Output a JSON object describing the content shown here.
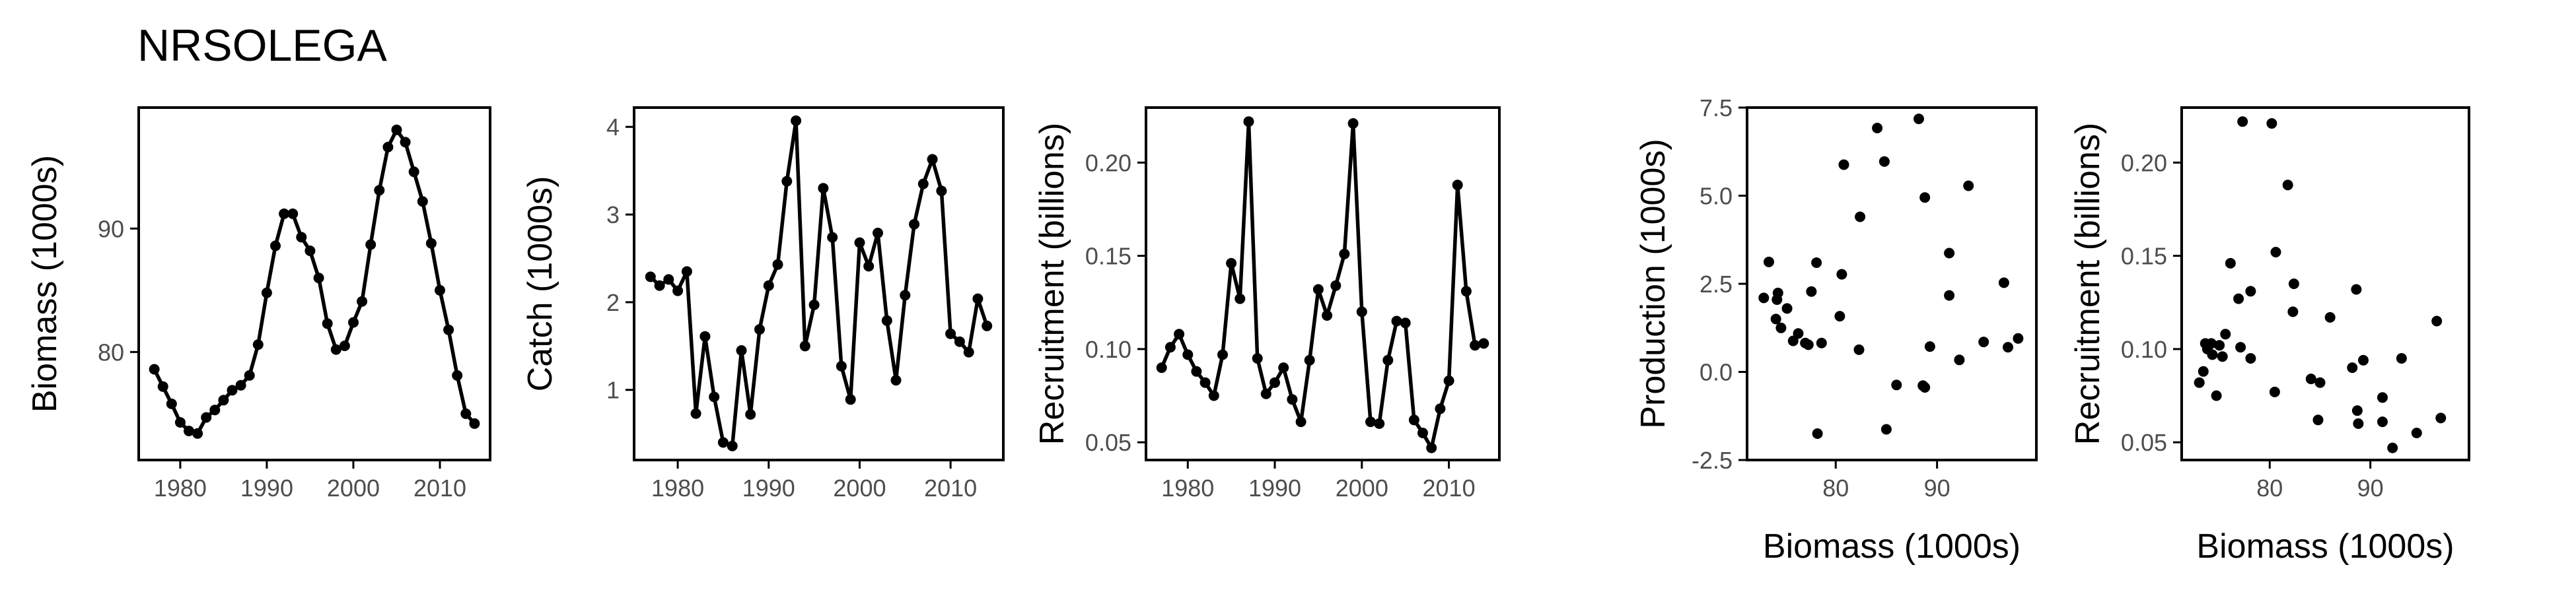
{
  "page": {
    "title": "NRSOLEGA"
  },
  "colors": {
    "ink": "#000000",
    "tick_label": "#4d4d4d",
    "background": "#ffffff"
  },
  "chart_data": [
    {
      "type": "line",
      "title": "",
      "xlabel": "",
      "ylabel": "Biomass (1000s)",
      "xlim": [
        1975.2,
        2015.8
      ],
      "ylim": [
        71.25,
        99.8
      ],
      "xticks": [
        1980,
        1990,
        2000,
        2010
      ],
      "yticks": [
        80,
        90
      ],
      "grid": false,
      "x": [
        1977,
        1978,
        1979,
        1980,
        1981,
        1982,
        1983,
        1984,
        1985,
        1986,
        1987,
        1988,
        1989,
        1990,
        1991,
        1992,
        1993,
        1994,
        1995,
        1996,
        1997,
        1998,
        1999,
        2000,
        2001,
        2002,
        2003,
        2004,
        2005,
        2006,
        2007,
        2008,
        2009,
        2010,
        2011,
        2012,
        2013,
        2014
      ],
      "values": [
        78.6,
        77.2,
        75.8,
        74.3,
        73.6,
        73.4,
        74.7,
        75.3,
        76.1,
        76.9,
        77.3,
        78.1,
        80.6,
        84.8,
        88.6,
        91.2,
        91.2,
        89.3,
        88.2,
        86.0,
        82.3,
        80.2,
        80.5,
        82.4,
        84.1,
        88.7,
        93.1,
        96.6,
        98.0,
        97.0,
        94.6,
        92.2,
        88.8,
        85.0,
        81.8,
        78.1,
        75.0,
        74.2
      ]
    },
    {
      "type": "line",
      "title": "",
      "xlabel": "",
      "ylabel": "Catch (1000s)",
      "xlim": [
        1975.2,
        2015.8
      ],
      "ylim": [
        0.2,
        4.22
      ],
      "xticks": [
        1980,
        1990,
        2000,
        2010
      ],
      "yticks": [
        1,
        2,
        3,
        4
      ],
      "grid": false,
      "x": [
        1977,
        1978,
        1979,
        1980,
        1981,
        1982,
        1983,
        1984,
        1985,
        1986,
        1987,
        1988,
        1989,
        1990,
        1991,
        1992,
        1993,
        1994,
        1995,
        1996,
        1997,
        1998,
        1999,
        2000,
        2001,
        2002,
        2003,
        2004,
        2005,
        2006,
        2007,
        2008,
        2009,
        2010,
        2011,
        2012,
        2013,
        2014
      ],
      "values": [
        2.29,
        2.19,
        2.26,
        2.13,
        2.35,
        0.73,
        1.61,
        0.92,
        0.4,
        0.36,
        1.45,
        0.72,
        1.69,
        2.19,
        2.43,
        3.38,
        4.07,
        1.5,
        1.97,
        3.3,
        2.74,
        1.27,
        0.89,
        2.68,
        2.41,
        2.79,
        1.79,
        1.11,
        2.08,
        2.89,
        3.35,
        3.63,
        3.27,
        1.64,
        1.55,
        1.43,
        2.04,
        1.73
      ]
    },
    {
      "type": "line",
      "title": "",
      "xlabel": "",
      "ylabel": "Recruitment (billions)",
      "xlim": [
        1975.2,
        2015.8
      ],
      "ylim": [
        0.0405,
        0.2295
      ],
      "xticks": [
        1980,
        1990,
        2000,
        2010
      ],
      "yticks": [
        0.05,
        0.1,
        0.15,
        0.2
      ],
      "ytick_labels": [
        "0.05",
        "0.10",
        "0.15",
        "0.20"
      ],
      "grid": false,
      "x": [
        1977,
        1978,
        1979,
        1980,
        1981,
        1982,
        1983,
        1984,
        1985,
        1986,
        1987,
        1988,
        1989,
        1990,
        1991,
        1992,
        1993,
        1994,
        1995,
        1996,
        1997,
        1998,
        1999,
        2000,
        2001,
        2002,
        2003,
        2004,
        2005,
        2006,
        2007,
        2008,
        2009,
        2010,
        2011,
        2012,
        2013,
        2014
      ],
      "values": [
        0.09,
        0.101,
        0.108,
        0.097,
        0.088,
        0.082,
        0.075,
        0.097,
        0.146,
        0.127,
        0.222,
        0.095,
        0.076,
        0.082,
        0.09,
        0.073,
        0.061,
        0.094,
        0.132,
        0.118,
        0.134,
        0.151,
        0.221,
        0.12,
        0.061,
        0.06,
        0.094,
        0.115,
        0.114,
        0.062,
        0.055,
        0.047,
        0.068,
        0.083,
        0.188,
        0.131,
        0.102,
        0.103
      ]
    },
    {
      "type": "scatter",
      "title": "",
      "xlabel": "Biomass (1000s)",
      "ylabel": "Production (1000s)",
      "xlim": [
        71.25,
        99.8
      ],
      "ylim": [
        -2.5,
        7.5
      ],
      "xticks": [
        80,
        90
      ],
      "yticks": [
        -2.5,
        0.0,
        2.5,
        5.0,
        7.5
      ],
      "ytick_labels": [
        "-2.5",
        "0.0",
        "2.5",
        "5.0",
        "7.5"
      ],
      "grid": false,
      "x": [
        72.9,
        73.4,
        74.1,
        74.6,
        74.3,
        75.2,
        75.8,
        76.3,
        77.0,
        77.3,
        77.6,
        78.1,
        78.2,
        78.6,
        80.4,
        80.6,
        80.8,
        82.3,
        82.4,
        84.1,
        84.8,
        85.0,
        86.0,
        88.2,
        88.6,
        88.8,
        88.8,
        89.3,
        91.2,
        91.2,
        92.2,
        93.1,
        94.6,
        96.6,
        97.0,
        98.0,
        74.2
      ],
      "values": [
        2.1,
        3.12,
        1.5,
        1.25,
        2.24,
        1.8,
        0.88,
        1.09,
        0.82,
        0.77,
        2.28,
        3.1,
        -1.75,
        0.82,
        1.58,
        2.77,
        5.88,
        0.63,
        4.4,
        6.92,
        5.97,
        -1.63,
        -0.37,
        7.18,
        -0.39,
        -0.44,
        4.95,
        0.72,
        3.37,
        2.17,
        0.34,
        5.28,
        0.85,
        2.53,
        0.7,
        0.95,
        2.05
      ]
    },
    {
      "type": "scatter",
      "title": "",
      "xlabel": "Biomass (1000s)",
      "ylabel": "Recruitment (billions)",
      "xlim": [
        71.25,
        99.8
      ],
      "ylim": [
        0.0405,
        0.2295
      ],
      "xticks": [
        80,
        90
      ],
      "yticks": [
        0.05,
        0.1,
        0.15,
        0.2
      ],
      "ytick_labels": [
        "0.05",
        "0.10",
        "0.15",
        "0.20"
      ],
      "grid": false,
      "x": [
        73.0,
        73.4,
        73.6,
        74.3,
        74.7,
        75.3,
        76.1,
        76.9,
        77.3,
        78.1,
        77.1,
        80.6,
        84.8,
        88.6,
        91.2,
        91.2,
        89.3,
        88.2,
        86.0,
        82.3,
        80.2,
        80.5,
        82.4,
        84.1,
        88.7,
        93.1,
        96.6,
        97.0,
        94.6,
        92.2,
        88.8,
        85.0,
        81.8,
        78.1,
        75.0,
        74.2,
        73.8,
        75.6
      ],
      "values": [
        0.082,
        0.088,
        0.103,
        0.097,
        0.075,
        0.096,
        0.146,
        0.127,
        0.222,
        0.095,
        0.101,
        0.152,
        0.062,
        0.132,
        0.074,
        0.061,
        0.094,
        0.09,
        0.117,
        0.12,
        0.221,
        0.077,
        0.135,
        0.084,
        0.067,
        0.095,
        0.115,
        0.063,
        0.055,
        0.047,
        0.06,
        0.082,
        0.188,
        0.131,
        0.102,
        0.103,
        0.1,
        0.108
      ]
    }
  ]
}
